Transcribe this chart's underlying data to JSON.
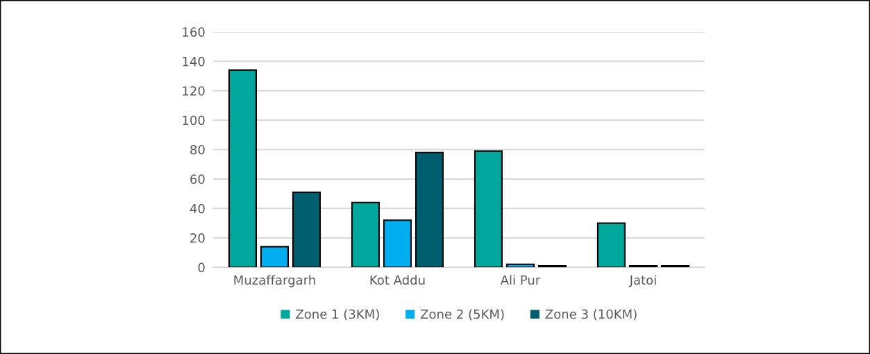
{
  "chart_data": {
    "type": "bar",
    "categories": [
      "Muzaffargarh",
      "Kot Addu",
      "Ali Pur",
      "Jatoi"
    ],
    "series": [
      {
        "name": "Zone 1 (3KM)",
        "color": "#00a79d",
        "values": [
          134,
          44,
          79,
          30
        ]
      },
      {
        "name": "Zone 2 (5KM)",
        "color": "#00adef",
        "values": [
          14,
          32,
          2,
          1
        ]
      },
      {
        "name": "Zone 3 (10KM)",
        "color": "#005f6e",
        "values": [
          51,
          78,
          1,
          1
        ]
      }
    ],
    "ylim": [
      0,
      160
    ],
    "yticks": [
      0,
      20,
      40,
      60,
      80,
      100,
      120,
      140,
      160
    ],
    "grid": "y",
    "legend": "bottom"
  }
}
